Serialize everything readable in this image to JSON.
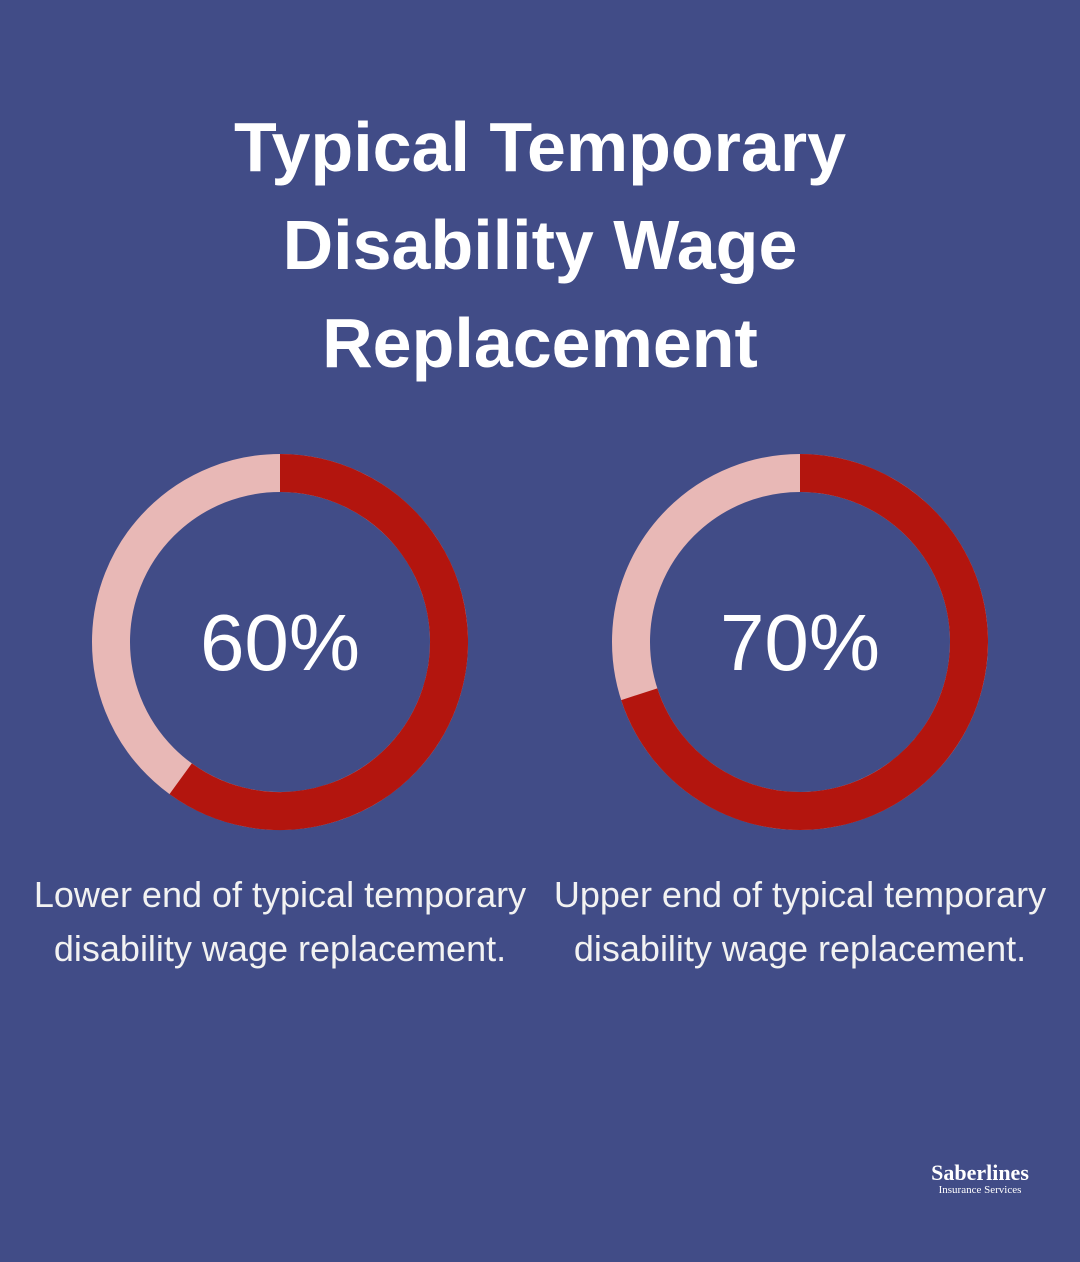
{
  "title": "Typical Temporary Disability Wage Replacement",
  "chart_data": [
    {
      "type": "donut",
      "values": [
        60
      ],
      "value_labels": [
        "60%"
      ],
      "ylim": [
        0,
        100
      ],
      "color": "#b3150e",
      "track_color": "#e8b8b6",
      "caption": "Lower end of typical temporary disability wage replacement."
    },
    {
      "type": "donut",
      "values": [
        70
      ],
      "value_labels": [
        "70%"
      ],
      "ylim": [
        0,
        100
      ],
      "color": "#b3150e",
      "track_color": "#e8b8b6",
      "caption": "Upper end of typical temporary disability wage replacement."
    }
  ],
  "brand": {
    "name": "Saberlines",
    "tagline": "Insurance Services"
  }
}
